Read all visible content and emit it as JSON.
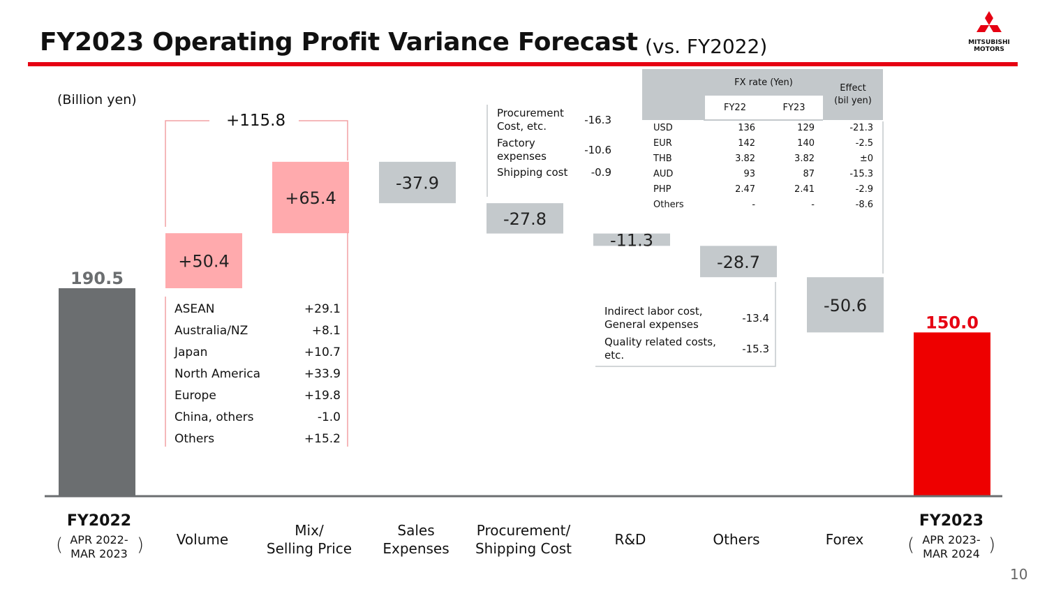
{
  "header": {
    "title": "FY2023 Operating Profit Variance Forecast",
    "subtitle": "(vs. FY2022)",
    "logo_text": [
      "MITSUBISHI",
      "MOTORS"
    ],
    "accent_color": "#e60012",
    "page_number": "10"
  },
  "unit_label": "(Billion yen)",
  "chart_data": {
    "type": "bar",
    "subtype": "waterfall",
    "categories": [
      "FY2022",
      "Volume",
      "Mix/ Selling Price",
      "Sales Expenses",
      "Procurement/ Shipping Cost",
      "R&D",
      "Others",
      "Forex",
      "FY2023"
    ],
    "values": [
      190.5,
      50.4,
      65.4,
      -37.9,
      -27.8,
      -11.3,
      -28.7,
      -50.6,
      150.0
    ],
    "labels": [
      "190.5",
      "+50.4",
      "+65.4",
      "-37.9",
      "-27.8",
      "-11.3",
      "-28.7",
      "-50.6",
      "150.0"
    ],
    "ylim": [
      0,
      320
    ],
    "colors": {
      "start": "#6b6e70",
      "positive": "#ffaaad",
      "negative": "#c4c9cc",
      "end": "#ee0000",
      "start_label": "#6b6e70",
      "end_label": "#e60012"
    },
    "grid": false,
    "legend": "none",
    "combined_annotation": {
      "label": "+115.8",
      "spans": [
        "Volume",
        "Mix/ Selling Price"
      ]
    }
  },
  "category_labels": {
    "fy2022": {
      "title": "FY2022",
      "period_line1": "APR 2022-",
      "period_line2": "MAR 2023"
    },
    "volume": "Volume",
    "mix": [
      "Mix/",
      "Selling Price"
    ],
    "sales": [
      "Sales",
      "Expenses"
    ],
    "procurement": [
      "Procurement/",
      "Shipping Cost"
    ],
    "rnd": "R&D",
    "others": "Others",
    "forex": "Forex",
    "fy2023": {
      "title": "FY2023",
      "period_line1": "APR 2023-",
      "period_line2": "MAR 2024"
    }
  },
  "volume_breakdown": [
    {
      "region": "ASEAN",
      "value": "+29.1"
    },
    {
      "region": "Australia/NZ",
      "value": "+8.1"
    },
    {
      "region": "Japan",
      "value": "+10.7"
    },
    {
      "region": "North America",
      "value": "+33.9"
    },
    {
      "region": "Europe",
      "value": "+19.8"
    },
    {
      "region": "China, others",
      "value": "-1.0"
    },
    {
      "region": "Others",
      "value": "+15.2"
    }
  ],
  "procurement_breakdown": [
    {
      "item": [
        "Procurement",
        "Cost, etc."
      ],
      "value": "-16.3"
    },
    {
      "item": [
        "Factory",
        "expenses"
      ],
      "value": "-10.6"
    },
    {
      "item": [
        "Shipping cost"
      ],
      "value": "-0.9"
    }
  ],
  "others_breakdown": [
    {
      "item": [
        "Indirect labor cost,",
        "General expenses"
      ],
      "value": "-13.4"
    },
    {
      "item": [
        "Quality related costs,",
        "etc."
      ],
      "value": "-15.3"
    }
  ],
  "fx_table": {
    "header_group": "FX rate (Yen)",
    "col_fy22": "FY22",
    "col_fy23": "FY23",
    "col_effect": [
      "Effect",
      "(bil yen)"
    ],
    "rows": [
      {
        "currency": "USD",
        "fy22": "136",
        "fy23": "129",
        "effect": "-21.3"
      },
      {
        "currency": "EUR",
        "fy22": "142",
        "fy23": "140",
        "effect": "-2.5"
      },
      {
        "currency": "THB",
        "fy22": "3.82",
        "fy23": "3.82",
        "effect": "±0"
      },
      {
        "currency": "AUD",
        "fy22": "93",
        "fy23": "87",
        "effect": "-15.3"
      },
      {
        "currency": "PHP",
        "fy22": "2.47",
        "fy23": "2.41",
        "effect": "-2.9"
      },
      {
        "currency": "Others",
        "fy22": "-",
        "fy23": "-",
        "effect": "-8.6"
      }
    ]
  }
}
